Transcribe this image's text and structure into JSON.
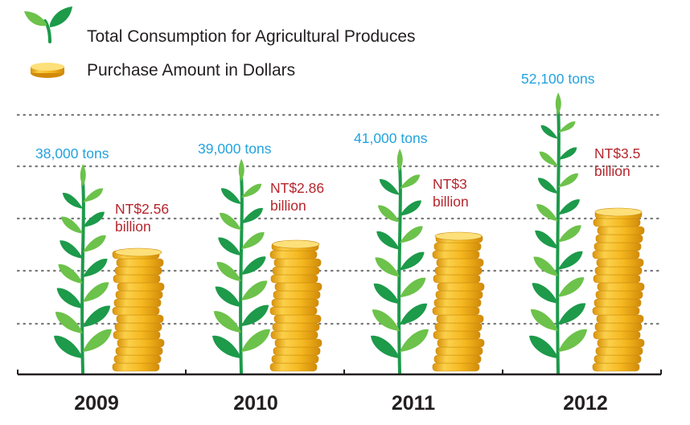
{
  "legend": [
    {
      "label": "Total Consumption for Agricultural Produces",
      "icon": "sprout-icon"
    },
    {
      "label": "Purchase Amount in Dollars",
      "icon": "coin-icon"
    }
  ],
  "colors": {
    "tons_text": "#22a3dd",
    "money_text": "#b5262d",
    "leaf_dark": "#1d9a4a",
    "leaf_light": "#6cc24a",
    "coin_fill": "#f3b51b",
    "coin_edge": "#c98a0a",
    "coin_highlight": "#fde07a",
    "grid": "#7a7a7a",
    "axis": "#231f20"
  },
  "chart_data": {
    "type": "bar",
    "categories": [
      "2009",
      "2010",
      "2011",
      "2012"
    ],
    "series": [
      {
        "name": "Total Consumption for Agricultural Produces",
        "unit": "tons",
        "values": [
          38000,
          39000,
          41000,
          52100
        ],
        "labels": [
          "38,000 tons",
          "39,000 tons",
          "41,000 tons",
          "52,100 tons"
        ]
      },
      {
        "name": "Purchase Amount in Dollars",
        "unit": "NT$ billion",
        "values": [
          2.56,
          2.86,
          3,
          3.5
        ],
        "labels": [
          [
            "NT$2.56",
            "billion"
          ],
          [
            "NT$2.86",
            "billion"
          ],
          [
            "NT$3",
            "billion"
          ],
          [
            "NT$3.5",
            "billion"
          ]
        ]
      }
    ],
    "grid": true,
    "legend_position": "top-left"
  }
}
